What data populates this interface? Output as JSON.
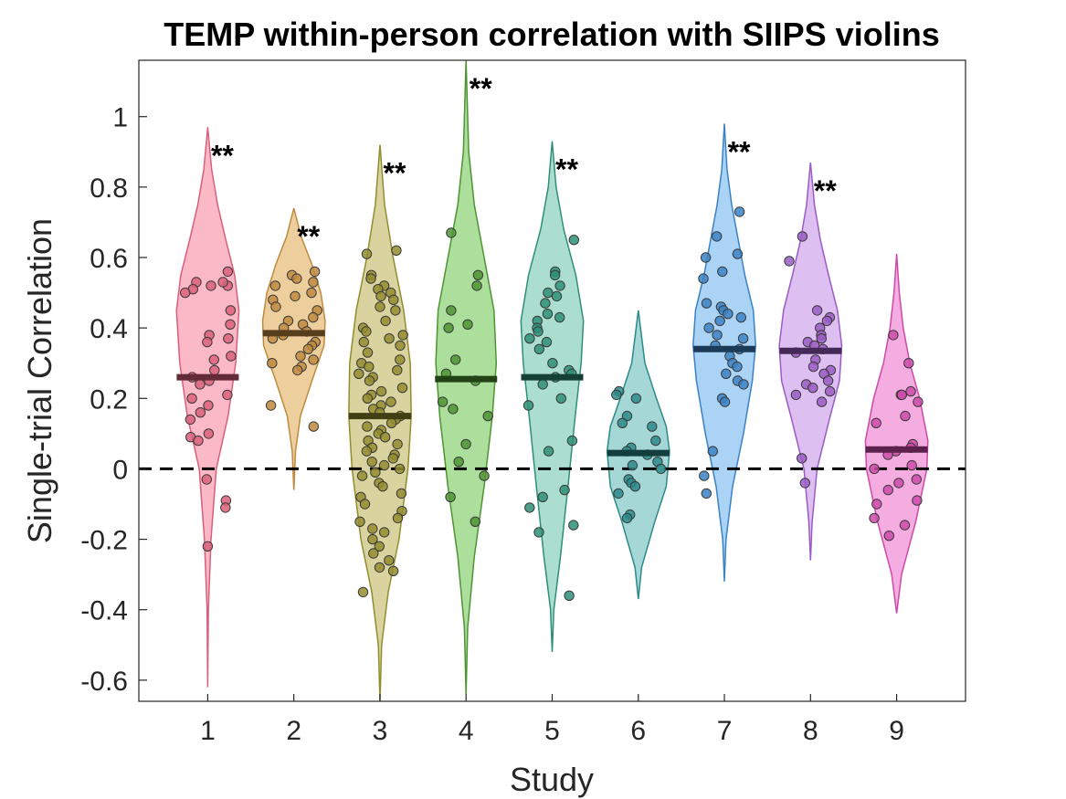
{
  "chart_data": {
    "type": "violin",
    "title": "TEMP within-person correlation with SIIPS violins",
    "xlabel": "Study",
    "ylabel": "Single-trial Correlation",
    "categories": [
      "1",
      "2",
      "3",
      "4",
      "5",
      "6",
      "7",
      "8",
      "9"
    ],
    "ylim": [
      -0.66,
      1.16
    ],
    "yticks": [
      -0.6,
      -0.4,
      -0.2,
      0,
      0.2,
      0.4,
      0.6,
      0.8,
      1
    ],
    "ytick_labels": [
      "-0.6",
      "-0.4",
      "-0.2",
      "0",
      "0.2",
      "0.4",
      "0.6",
      "0.8",
      "1"
    ],
    "reference_line": 0,
    "significance_label": "**",
    "series": [
      {
        "study": "1",
        "fill": "#fbb4c3",
        "stroke": "#d9607a",
        "median": 0.26,
        "significance": "**",
        "range": [
          -0.62,
          0.97
        ],
        "density": [
          [
            -0.62,
            0.0
          ],
          [
            -0.4,
            0.02
          ],
          [
            -0.2,
            0.1
          ],
          [
            0.0,
            0.26
          ],
          [
            0.15,
            0.62
          ],
          [
            0.3,
            0.85
          ],
          [
            0.45,
            0.95
          ],
          [
            0.55,
            0.82
          ],
          [
            0.65,
            0.55
          ],
          [
            0.75,
            0.3
          ],
          [
            0.85,
            0.12
          ],
          [
            0.97,
            0.0
          ]
        ],
        "points": [
          0.56,
          0.53,
          0.52,
          0.52,
          0.51,
          0.5,
          0.53,
          0.45,
          0.41,
          0.38,
          0.37,
          0.36,
          0.32,
          0.31,
          0.28,
          0.26,
          0.25,
          0.24,
          0.21,
          0.2,
          0.18,
          0.16,
          0.14,
          0.1,
          0.09,
          0.08,
          -0.03,
          -0.09,
          -0.11,
          -0.22
        ]
      },
      {
        "study": "2",
        "fill": "#eccc99",
        "stroke": "#c08a3e",
        "median": 0.385,
        "significance": "**",
        "range": [
          -0.06,
          0.74
        ],
        "density": [
          [
            -0.06,
            0.0
          ],
          [
            0.05,
            0.05
          ],
          [
            0.15,
            0.2
          ],
          [
            0.25,
            0.55
          ],
          [
            0.35,
            0.92
          ],
          [
            0.42,
            0.95
          ],
          [
            0.5,
            0.82
          ],
          [
            0.58,
            0.55
          ],
          [
            0.66,
            0.22
          ],
          [
            0.74,
            0.0
          ]
        ],
        "points": [
          0.56,
          0.55,
          0.54,
          0.53,
          0.52,
          0.5,
          0.49,
          0.48,
          0.46,
          0.45,
          0.43,
          0.42,
          0.41,
          0.4,
          0.39,
          0.38,
          0.37,
          0.36,
          0.35,
          0.34,
          0.32,
          0.31,
          0.3,
          0.29,
          0.28,
          0.18,
          0.12
        ]
      },
      {
        "study": "3",
        "fill": "#d7d29a",
        "stroke": "#938c2e",
        "median": 0.15,
        "significance": "**",
        "range": [
          -0.66,
          0.92
        ],
        "density": [
          [
            -0.66,
            0.0
          ],
          [
            -0.5,
            0.05
          ],
          [
            -0.35,
            0.25
          ],
          [
            -0.2,
            0.58
          ],
          [
            0.0,
            0.85
          ],
          [
            0.15,
            0.95
          ],
          [
            0.3,
            0.92
          ],
          [
            0.45,
            0.72
          ],
          [
            0.6,
            0.4
          ],
          [
            0.75,
            0.14
          ],
          [
            0.92,
            0.0
          ]
        ],
        "points": [
          0.62,
          0.61,
          0.55,
          0.54,
          0.52,
          0.51,
          0.5,
          0.49,
          0.48,
          0.46,
          0.45,
          0.42,
          0.4,
          0.39,
          0.38,
          0.37,
          0.36,
          0.35,
          0.33,
          0.31,
          0.3,
          0.29,
          0.28,
          0.27,
          0.26,
          0.25,
          0.23,
          0.22,
          0.21,
          0.2,
          0.19,
          0.18,
          0.17,
          0.16,
          0.15,
          0.14,
          0.13,
          0.12,
          0.11,
          0.1,
          0.09,
          0.08,
          0.07,
          0.06,
          0.05,
          0.04,
          0.03,
          0.02,
          0.01,
          0.0,
          -0.01,
          -0.02,
          -0.04,
          -0.05,
          -0.07,
          -0.08,
          -0.1,
          -0.12,
          -0.14,
          -0.15,
          -0.17,
          -0.18,
          -0.2,
          -0.22,
          -0.24,
          -0.26,
          -0.28,
          -0.29,
          -0.35
        ]
      },
      {
        "study": "4",
        "fill": "#a8dc97",
        "stroke": "#4d9433",
        "median": 0.255,
        "significance": "**",
        "range": [
          -0.64,
          1.16
        ],
        "density": [
          [
            -0.64,
            0.0
          ],
          [
            -0.45,
            0.05
          ],
          [
            -0.25,
            0.25
          ],
          [
            -0.05,
            0.55
          ],
          [
            0.15,
            0.8
          ],
          [
            0.3,
            0.92
          ],
          [
            0.45,
            0.85
          ],
          [
            0.6,
            0.55
          ],
          [
            0.75,
            0.25
          ],
          [
            0.9,
            0.08
          ],
          [
            1.16,
            0.0
          ]
        ],
        "points": [
          0.67,
          0.55,
          0.52,
          0.45,
          0.41,
          0.4,
          0.31,
          0.27,
          0.25,
          0.19,
          0.17,
          0.15,
          0.07,
          0.02,
          -0.02,
          -0.08,
          -0.15
        ]
      },
      {
        "study": "5",
        "fill": "#a8dccd",
        "stroke": "#2e8f78",
        "median": 0.26,
        "significance": "**",
        "range": [
          -0.52,
          0.93
        ],
        "density": [
          [
            -0.52,
            0.0
          ],
          [
            -0.4,
            0.05
          ],
          [
            -0.25,
            0.25
          ],
          [
            -0.05,
            0.48
          ],
          [
            0.15,
            0.7
          ],
          [
            0.3,
            0.88
          ],
          [
            0.42,
            0.95
          ],
          [
            0.55,
            0.72
          ],
          [
            0.68,
            0.35
          ],
          [
            0.8,
            0.12
          ],
          [
            0.93,
            0.0
          ]
        ],
        "points": [
          0.65,
          0.56,
          0.55,
          0.52,
          0.5,
          0.49,
          0.47,
          0.44,
          0.43,
          0.42,
          0.4,
          0.39,
          0.37,
          0.36,
          0.34,
          0.3,
          0.28,
          0.27,
          0.26,
          0.24,
          0.2,
          0.18,
          0.08,
          0.05,
          -0.06,
          -0.08,
          -0.11,
          -0.16,
          -0.18,
          -0.36
        ]
      },
      {
        "study": "6",
        "fill": "#a0d5d5",
        "stroke": "#2b8a8a",
        "median": 0.045,
        "significance": "",
        "range": [
          -0.37,
          0.45
        ],
        "density": [
          [
            -0.37,
            0.0
          ],
          [
            -0.28,
            0.1
          ],
          [
            -0.15,
            0.5
          ],
          [
            -0.05,
            0.85
          ],
          [
            0.05,
            0.95
          ],
          [
            0.12,
            0.85
          ],
          [
            0.2,
            0.55
          ],
          [
            0.3,
            0.2
          ],
          [
            0.45,
            0.0
          ]
        ],
        "points": [
          0.22,
          0.21,
          0.2,
          0.15,
          0.13,
          0.12,
          0.08,
          0.06,
          0.05,
          0.04,
          0.02,
          0.01,
          0.0,
          -0.03,
          -0.04,
          -0.05,
          -0.07,
          -0.13,
          -0.14
        ]
      },
      {
        "study": "7",
        "fill": "#a6d1f5",
        "stroke": "#3b82c4",
        "median": 0.34,
        "significance": "**",
        "range": [
          -0.32,
          0.98
        ],
        "density": [
          [
            -0.32,
            0.0
          ],
          [
            -0.2,
            0.05
          ],
          [
            -0.05,
            0.25
          ],
          [
            0.1,
            0.58
          ],
          [
            0.25,
            0.85
          ],
          [
            0.35,
            0.95
          ],
          [
            0.45,
            0.88
          ],
          [
            0.55,
            0.62
          ],
          [
            0.65,
            0.42
          ],
          [
            0.75,
            0.22
          ],
          [
            0.85,
            0.08
          ],
          [
            0.98,
            0.0
          ]
        ],
        "points": [
          0.73,
          0.66,
          0.61,
          0.6,
          0.56,
          0.54,
          0.47,
          0.46,
          0.45,
          0.44,
          0.43,
          0.42,
          0.4,
          0.38,
          0.37,
          0.35,
          0.34,
          0.32,
          0.3,
          0.29,
          0.27,
          0.25,
          0.24,
          0.2,
          0.19,
          0.05,
          -0.02,
          -0.07
        ]
      },
      {
        "study": "8",
        "fill": "#dbbdf0",
        "stroke": "#9a5cc4",
        "median": 0.335,
        "significance": "**",
        "range": [
          -0.26,
          0.87
        ],
        "density": [
          [
            -0.26,
            0.0
          ],
          [
            -0.15,
            0.05
          ],
          [
            0.0,
            0.2
          ],
          [
            0.15,
            0.6
          ],
          [
            0.25,
            0.88
          ],
          [
            0.35,
            0.95
          ],
          [
            0.45,
            0.82
          ],
          [
            0.55,
            0.55
          ],
          [
            0.65,
            0.3
          ],
          [
            0.75,
            0.12
          ],
          [
            0.87,
            0.0
          ]
        ],
        "points": [
          0.66,
          0.59,
          0.45,
          0.43,
          0.42,
          0.4,
          0.38,
          0.37,
          0.36,
          0.35,
          0.34,
          0.33,
          0.31,
          0.29,
          0.28,
          0.27,
          0.25,
          0.24,
          0.23,
          0.22,
          0.21,
          0.19,
          0.03,
          -0.04
        ]
      },
      {
        "study": "9",
        "fill": "#f4a8df",
        "stroke": "#cc4aa9",
        "median": 0.055,
        "significance": "",
        "range": [
          -0.41,
          0.61
        ],
        "density": [
          [
            -0.41,
            0.0
          ],
          [
            -0.3,
            0.15
          ],
          [
            -0.15,
            0.58
          ],
          [
            0.0,
            0.92
          ],
          [
            0.08,
            0.95
          ],
          [
            0.2,
            0.7
          ],
          [
            0.3,
            0.4
          ],
          [
            0.4,
            0.2
          ],
          [
            0.5,
            0.08
          ],
          [
            0.61,
            0.0
          ]
        ],
        "points": [
          0.38,
          0.3,
          0.22,
          0.21,
          0.21,
          0.19,
          0.15,
          0.13,
          0.07,
          0.06,
          0.05,
          0.04,
          0.01,
          0.0,
          -0.03,
          -0.04,
          -0.06,
          -0.09,
          -0.1,
          -0.14,
          -0.16,
          -0.19
        ]
      }
    ]
  }
}
